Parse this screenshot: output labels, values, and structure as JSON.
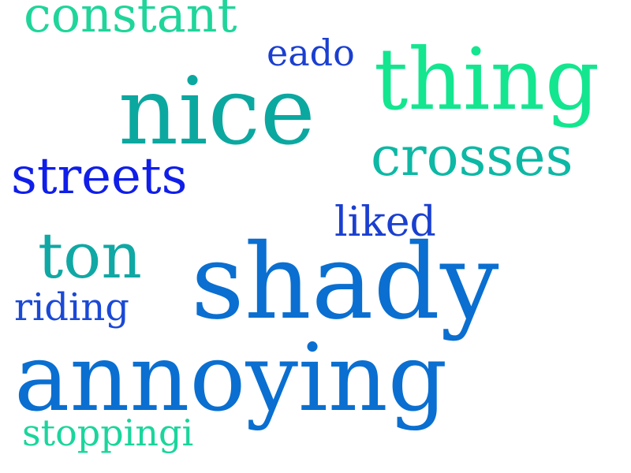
{
  "words": [
    {
      "text": "constant",
      "color": "#1fd59a"
    },
    {
      "text": "eado",
      "color": "#1a3fd0"
    },
    {
      "text": "nice",
      "color": "#0ba8a0"
    },
    {
      "text": "thing",
      "color": "#13e68f"
    },
    {
      "text": "crosses",
      "color": "#0db8a4"
    },
    {
      "text": "streets",
      "color": "#0f1ee8"
    },
    {
      "text": "liked",
      "color": "#1a3fd0"
    },
    {
      "text": "ton",
      "color": "#10a8a4"
    },
    {
      "text": "shady",
      "color": "#0a6fd0"
    },
    {
      "text": "riding",
      "color": "#1a49d6"
    },
    {
      "text": "annoying",
      "color": "#0a6fd0"
    },
    {
      "text": "stoppingi",
      "color": "#1bd59c"
    }
  ]
}
